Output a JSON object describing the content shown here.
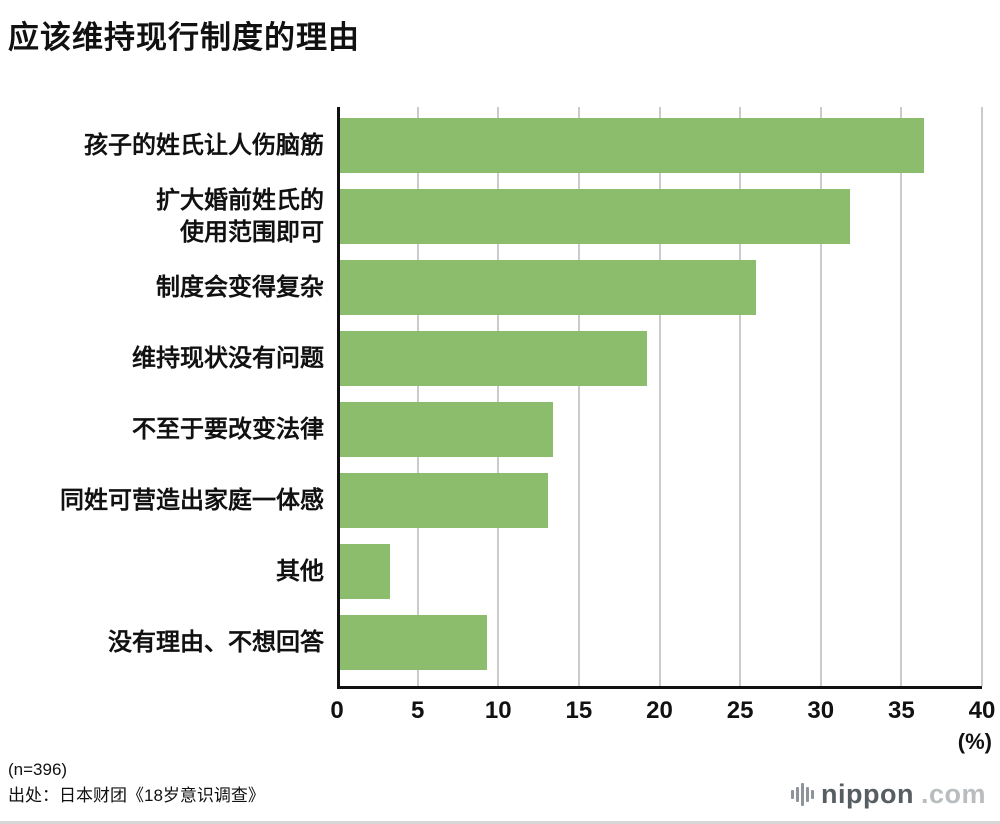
{
  "title": "应该维持现行制度的理由",
  "chart_data": {
    "type": "bar",
    "orientation": "horizontal",
    "title": "应该维持现行制度的理由",
    "categories": [
      "孩子的姓氏让人伤脑筋",
      "扩大婚前姓氏的\n使用范围即可",
      "制度会变得复杂",
      "维持现状没有问题",
      "不至于要改变法律",
      "同姓可营造出家庭一体感",
      "其他",
      "没有理由、不想回答"
    ],
    "values": [
      36.4,
      31.8,
      26.0,
      19.2,
      13.4,
      13.1,
      3.3,
      9.3
    ],
    "xlim": [
      0,
      40
    ],
    "x_ticks": [
      0,
      5,
      10,
      15,
      20,
      25,
      30,
      35,
      40
    ],
    "x_unit": "(%)",
    "grid": true,
    "colors": {
      "bar": "#8cbd6c",
      "gridline": "#cbcbcb",
      "axis": "#111111"
    }
  },
  "footer": {
    "sample": "(n=396)",
    "source": "出处：日本财团《18岁意识调查》"
  },
  "branding": {
    "name": "nippon",
    "tld": ".com"
  }
}
